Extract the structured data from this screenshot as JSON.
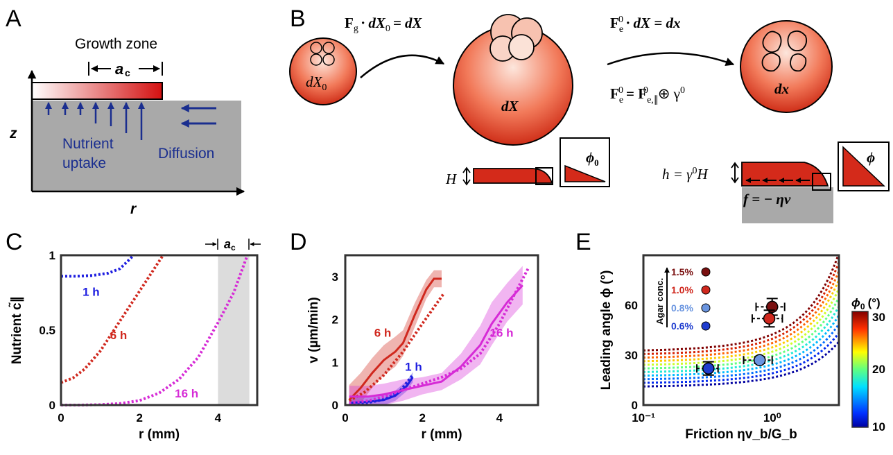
{
  "panels": {
    "A": {
      "label": "A",
      "growth_zone": "Growth zone",
      "ac": "a",
      "ac_sub": "c",
      "z": "z",
      "r": "r",
      "nutrient_line1": "Nutrient",
      "nutrient_line2": "uptake",
      "diffusion": "Diffusion",
      "arrow_color": "#1a2e8f"
    },
    "B": {
      "label": "B",
      "dX0": "dX",
      "dX0_sub": "0",
      "dX": "dX",
      "dx": "dx",
      "eq1_F": "F",
      "eq1_sub": "g",
      "eq1_rest": "· dX",
      "eq1_rest_sub": "0",
      "eq1_end": "= dX",
      "eq2_F": "F",
      "eq2_sub": "e",
      "eq2_sup": "0",
      "eq2_rest": "· dX = dx",
      "eq3": "= F",
      "eq3_sub": "e,∥",
      "eq3_sup": "0",
      "eq3_end": "⊕ γ",
      "eq3_end_sup": "0",
      "H": "H",
      "h_eq": "h = γ",
      "h_sup": "0",
      "h_end": "H",
      "f_eq": "f = − ηv",
      "phi0": "ϕ",
      "phi0_sub": "0",
      "phi": "ϕ"
    },
    "C": {
      "label": "C",
      "ac_label": "a",
      "ac_sub": "c"
    },
    "D": {
      "label": "D"
    },
    "E": {
      "label": "E",
      "agar_title": "Agar conc.",
      "legend": [
        {
          "label": "1.5%",
          "color": "#7a1010"
        },
        {
          "label": "1.0%",
          "color": "#d0281e"
        },
        {
          "label": "0.8%",
          "color": "#6a95e0"
        },
        {
          "label": "0.6%",
          "color": "#1e3ccf"
        }
      ],
      "colorbar_title": "ϕ",
      "colorbar_title_sub": "0",
      "colorbar_unit": "(°)",
      "colorbar_ticks": [
        "30",
        "20",
        "10"
      ]
    }
  },
  "chart_data": [
    {
      "type": "line",
      "panel": "C",
      "xlabel": "r (mm)",
      "ylabel": "Nutrient c̃∥",
      "xlim": [
        0,
        5
      ],
      "ylim": [
        0,
        1
      ],
      "xticks": [
        "0",
        "2",
        "4"
      ],
      "yticks": [
        "0",
        "0.5",
        "1"
      ],
      "shaded_region": [
        4,
        4.8
      ],
      "series": [
        {
          "name": "1 h",
          "color": "#1f1fe0",
          "style": "dotted",
          "x": [
            0,
            0.4,
            0.8,
            1.2,
            1.5,
            1.7,
            1.85
          ],
          "y": [
            0.86,
            0.86,
            0.865,
            0.88,
            0.91,
            0.96,
            1.0
          ]
        },
        {
          "name": "6 h",
          "color": "#d0281e",
          "style": "dotted",
          "x": [
            0,
            0.3,
            0.6,
            1.0,
            1.4,
            1.8,
            2.2,
            2.6
          ],
          "y": [
            0.15,
            0.18,
            0.24,
            0.36,
            0.52,
            0.68,
            0.84,
            1.0
          ]
        },
        {
          "name": "16 h",
          "color": "#d62bd6",
          "style": "dotted",
          "x": [
            0,
            0.5,
            1.0,
            1.5,
            2.0,
            2.5,
            3.0,
            3.5,
            4.0,
            4.4,
            4.75
          ],
          "y": [
            0,
            0,
            0.003,
            0.01,
            0.03,
            0.08,
            0.17,
            0.32,
            0.55,
            0.75,
            1.0
          ]
        }
      ],
      "series_labels": [
        {
          "text": "1 h",
          "x": 0.55,
          "y": 0.73,
          "color": "#1f1fe0"
        },
        {
          "text": "6 h",
          "x": 1.25,
          "y": 0.44,
          "color": "#d0281e"
        },
        {
          "text": "16 h",
          "x": 2.9,
          "y": 0.05,
          "color": "#d62bd6"
        }
      ]
    },
    {
      "type": "line",
      "panel": "D",
      "xlabel": "r (mm)",
      "ylabel": "v (µm/min)",
      "xlim": [
        0,
        5
      ],
      "ylim": [
        0,
        3.5
      ],
      "xticks": [
        "0",
        "2",
        "4"
      ],
      "yticks": [
        "0",
        "1",
        "2",
        "3"
      ],
      "series": [
        {
          "name": "6 h",
          "color": "#d0281e",
          "x": [
            0.1,
            0.4,
            0.7,
            1.0,
            1.3,
            1.5,
            1.8,
            2.1,
            2.3,
            2.5
          ],
          "y": [
            0.12,
            0.4,
            0.75,
            1.05,
            1.25,
            1.45,
            2.1,
            2.7,
            2.95,
            2.95
          ],
          "band": [
            0.35,
            0.35,
            0.35,
            0.35,
            0.35,
            0.3,
            0.28,
            0.22,
            0.2,
            0.2
          ]
        },
        {
          "name": "6 h model",
          "color": "#d0281e",
          "style": "dotted",
          "x": [
            0.1,
            0.5,
            1.0,
            1.5,
            2.0,
            2.55
          ],
          "y": [
            0.1,
            0.3,
            0.7,
            1.25,
            1.9,
            2.6
          ]
        },
        {
          "name": "1 h",
          "color": "#1f1fe0",
          "x": [
            0.1,
            0.5,
            1.0,
            1.3,
            1.6,
            1.75
          ],
          "y": [
            0.05,
            0.07,
            0.12,
            0.22,
            0.45,
            0.65
          ],
          "band": [
            0.12,
            0.12,
            0.12,
            0.12,
            0.12,
            0.12
          ]
        },
        {
          "name": "1 h model",
          "color": "#1f1fe0",
          "style": "dotted",
          "x": [
            0.1,
            0.6,
            1.0,
            1.4,
            1.75
          ],
          "y": [
            0.03,
            0.06,
            0.13,
            0.3,
            0.7
          ]
        },
        {
          "name": "16 h",
          "color": "#d62bd6",
          "x": [
            0.1,
            0.6,
            1.0,
            1.5,
            2.0,
            2.5,
            3.0,
            3.5,
            3.8,
            4.2,
            4.6
          ],
          "y": [
            0.2,
            0.2,
            0.25,
            0.35,
            0.45,
            0.55,
            0.9,
            1.4,
            1.9,
            2.4,
            2.8
          ],
          "band": [
            0.25,
            0.25,
            0.25,
            0.25,
            0.2,
            0.2,
            0.3,
            0.45,
            0.5,
            0.45,
            0.45
          ]
        },
        {
          "name": "16 h model",
          "color": "#d62bd6",
          "style": "dotted",
          "x": [
            0.1,
            0.6,
            1.0,
            1.5,
            2.0,
            2.5,
            3.0,
            3.5,
            4.0,
            4.4,
            4.75
          ],
          "y": [
            0.05,
            0.1,
            0.2,
            0.35,
            0.5,
            0.65,
            0.85,
            1.2,
            1.9,
            2.6,
            3.2
          ]
        }
      ],
      "series_labels": [
        {
          "text": "6 h",
          "x": 0.75,
          "y": 1.6,
          "color": "#d0281e"
        },
        {
          "text": "1 h",
          "x": 1.55,
          "y": 0.8,
          "color": "#1f1fe0"
        },
        {
          "text": "16 h",
          "x": 3.75,
          "y": 1.6,
          "color": "#d62bd6"
        }
      ]
    },
    {
      "type": "scatter",
      "panel": "E",
      "xlabel": "Friction ηv_b/G_b",
      "ylabel": "Leading angle ϕ (°)",
      "xscale": "log",
      "xlim": [
        0.1,
        3.3
      ],
      "ylim": [
        0,
        90
      ],
      "xticks": [
        "10⁻¹",
        "10⁰"
      ],
      "yticks": [
        "0",
        "30",
        "60"
      ],
      "points": [
        {
          "x": 1.0,
          "y": 59,
          "xerr": [
            0.25,
            0.25
          ],
          "yerr": 5,
          "color": "#7a1010"
        },
        {
          "x": 0.95,
          "y": 52,
          "xerr": [
            0.25,
            0.25
          ],
          "yerr": 5,
          "color": "#d0281e"
        },
        {
          "x": 0.8,
          "y": 27,
          "xerr": [
            0.2,
            0.2
          ],
          "yerr": 2,
          "color": "#6a95e0"
        },
        {
          "x": 0.32,
          "y": 22,
          "xerr": [
            0.06,
            0.06
          ],
          "yerr": 4,
          "color": "#1e3ccf"
        }
      ],
      "model_curves": {
        "phi0_values": [
          10,
          12,
          14,
          16,
          18,
          20,
          22,
          24,
          26,
          28,
          30
        ],
        "colorbar_range": [
          10,
          30
        ]
      }
    }
  ]
}
